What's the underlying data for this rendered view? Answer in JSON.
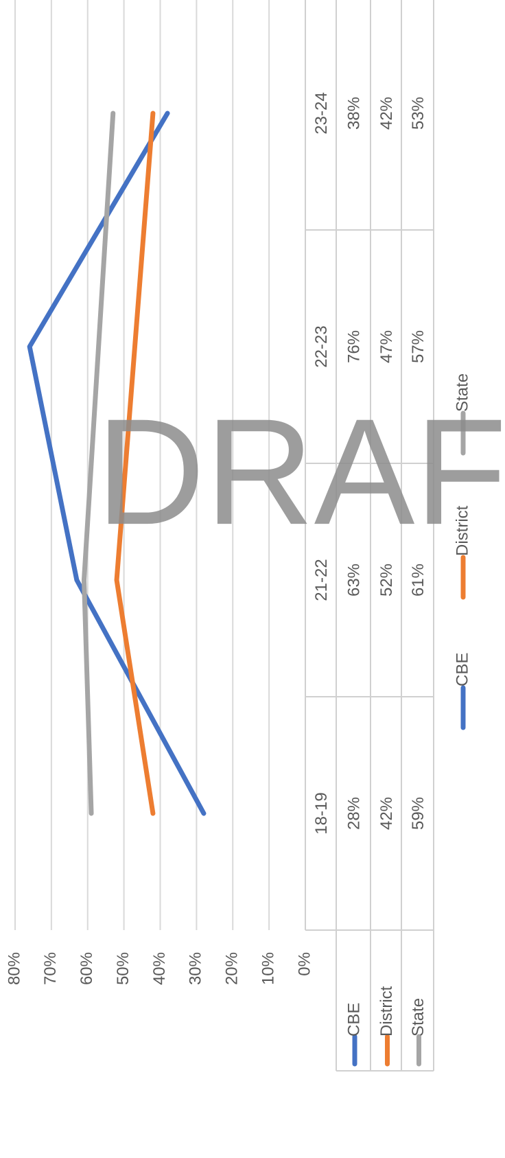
{
  "chart_data": {
    "type": "line",
    "categories": [
      "18-19",
      "21-22",
      "22-23",
      "23-24"
    ],
    "series": [
      {
        "name": "CBE",
        "color": "#4472c4",
        "values": [
          28,
          63,
          76,
          38
        ],
        "value_labels": [
          "28%",
          "63%",
          "76%",
          "38%"
        ]
      },
      {
        "name": "District",
        "color": "#ed7d31",
        "values": [
          42,
          52,
          47,
          42
        ],
        "value_labels": [
          "42%",
          "52%",
          "47%",
          "42%"
        ]
      },
      {
        "name": "State",
        "color": "#a5a5a5",
        "values": [
          59,
          61,
          57,
          53
        ],
        "value_labels": [
          "59%",
          "61%",
          "57%",
          "53%"
        ]
      }
    ],
    "ylim": [
      0,
      80
    ],
    "yticks": [
      {
        "value": 0,
        "label": "0%"
      },
      {
        "value": 10,
        "label": "10%"
      },
      {
        "value": 20,
        "label": "20%"
      },
      {
        "value": 30,
        "label": "30%"
      },
      {
        "value": 40,
        "label": "40%"
      },
      {
        "value": 50,
        "label": "50%"
      },
      {
        "value": 60,
        "label": "60%"
      },
      {
        "value": 70,
        "label": "70%"
      },
      {
        "value": 80,
        "label": "80%"
      }
    ],
    "grid": true,
    "data_table": true,
    "legend": "bottom",
    "watermark": "DRAFT"
  }
}
